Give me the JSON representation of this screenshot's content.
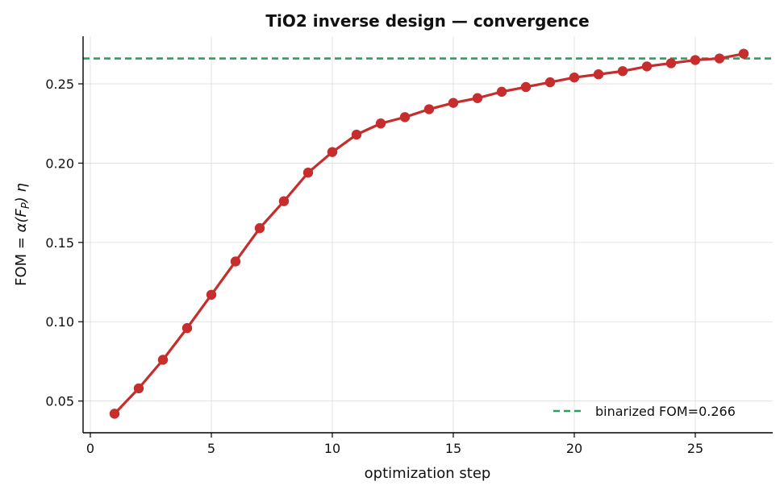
{
  "chart_data": {
    "type": "line",
    "title": "TiO2 inverse design — convergence",
    "xlabel": "optimization step",
    "ylabel_prefix": "FOM = ",
    "ylabel_math": "α(F",
    "ylabel_sub": "P",
    "ylabel_tail": ") η",
    "xlim": [
      -0.3,
      28.2
    ],
    "ylim": [
      0.03,
      0.28
    ],
    "xticks": [
      0,
      5,
      10,
      15,
      20,
      25
    ],
    "yticks": [
      0.05,
      0.1,
      0.15,
      0.2,
      0.25
    ],
    "ytick_labels": [
      "0.05",
      "0.10",
      "0.15",
      "0.20",
      "0.25"
    ],
    "grid": true,
    "legend_position": "bottom-right",
    "series": [
      {
        "color": "#c62d2d",
        "x": [
          1,
          2,
          3,
          4,
          5,
          6,
          7,
          8,
          9,
          10,
          11,
          12,
          13,
          14,
          15,
          16,
          17,
          18,
          19,
          20,
          21,
          22,
          23,
          24,
          25,
          26,
          27
        ],
        "values": [
          0.042,
          0.058,
          0.076,
          0.096,
          0.117,
          0.138,
          0.159,
          0.176,
          0.194,
          0.207,
          0.218,
          0.225,
          0.229,
          0.234,
          0.238,
          0.241,
          0.245,
          0.248,
          0.251,
          0.254,
          0.256,
          0.258,
          0.261,
          0.263,
          0.265,
          0.266,
          0.269
        ]
      }
    ],
    "reference_line": {
      "name": "binarized FOM=0.266",
      "value": 0.266,
      "color": "#2ca05a",
      "style": "dashed"
    }
  }
}
